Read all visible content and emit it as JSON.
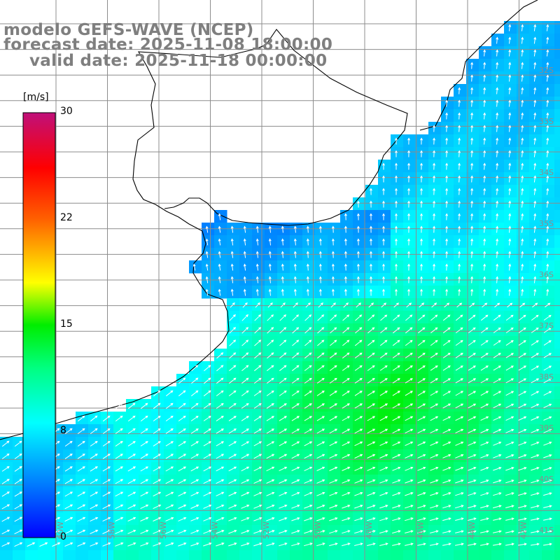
{
  "titles": {
    "model": "modelo GEFS-WAVE (NCEP)",
    "forecast": "forecast date: 2025-11-08 18:00:00",
    "valid": "valid date: 2025-11-18 00:00:00"
  },
  "colorbar": {
    "unit": "[m/s]",
    "min": 0,
    "max": 30,
    "tick_labels": [
      "30",
      "22",
      "15",
      "8",
      "0"
    ],
    "tick_values": [
      30,
      22,
      15,
      8,
      0
    ]
  },
  "map": {
    "lon_range": [
      -60,
      -40
    ],
    "lat_range": [
      -42,
      -22
    ],
    "latitude_labels": [
      "32S",
      "33S",
      "34S",
      "35S",
      "36S",
      "37S",
      "38S",
      "39S",
      "40S",
      "41S"
    ],
    "longitude_labels": [
      "60W",
      "58W",
      "56W",
      "54W",
      "52W",
      "50W",
      "48W",
      "46W",
      "44W",
      "42W"
    ],
    "colors": {
      "land": "#ffffff",
      "grid": "#8c8c8c",
      "coast": "#000000",
      "arrows": "#ffffff",
      "labels": "#8c8c8c"
    }
  }
}
